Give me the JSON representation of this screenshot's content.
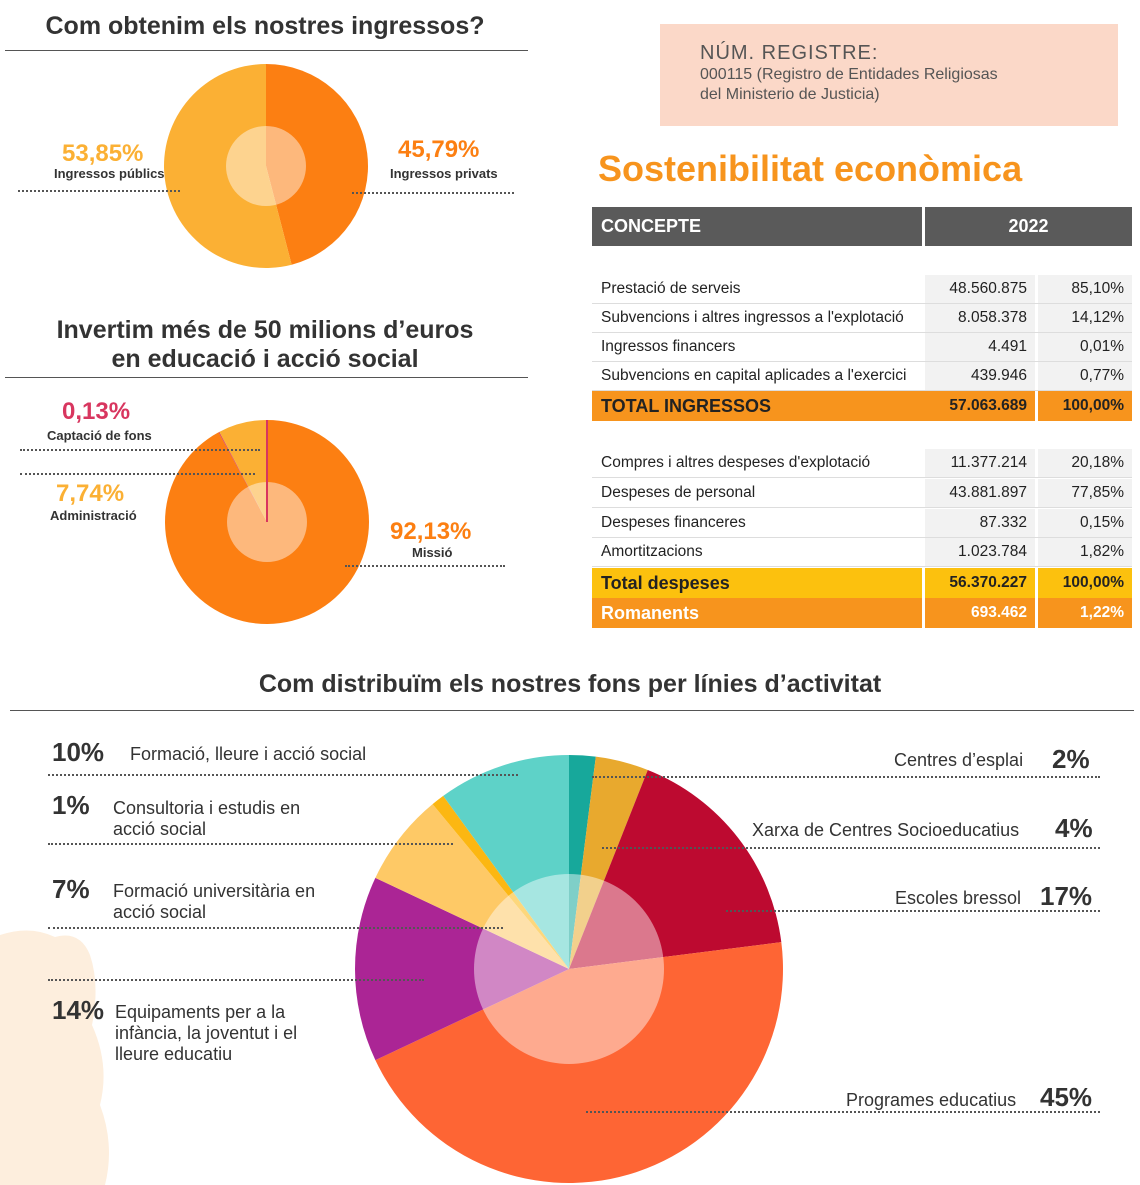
{
  "income_section": {
    "title": "Com obtenim els nostres ingressos?"
  },
  "investment_section": {
    "title_line1": "Invertim més de 50 milions d’euros",
    "title_line2": "en educació i acció social"
  },
  "activity_section": {
    "title": "Com distribuïm els nostres fons per línies d’activitat"
  },
  "registry": {
    "title": "NÚM. REGISTRE:",
    "line1": "000115 (Registro de Entidades Religiosas",
    "line2": "del Ministerio de Justicia)"
  },
  "sustainability": {
    "title": "Sostenibilitat econòmica",
    "header": {
      "concept": "CONCEPTE",
      "year": "2022"
    },
    "income_rows": [
      {
        "label": "Prestació de serveis",
        "amount": "48.560.875",
        "pct": "85,10%"
      },
      {
        "label": "Subvencions i altres ingressos a l'explotació",
        "amount": "8.058.378",
        "pct": "14,12%"
      },
      {
        "label": "Ingressos financers",
        "amount": "4.491",
        "pct": "0,01%"
      },
      {
        "label": "Subvencions en capital aplicades a l'exercici",
        "amount": "439.946",
        "pct": "0,77%"
      }
    ],
    "income_total": {
      "label": "TOTAL INGRESSOS",
      "amount": "57.063.689",
      "pct": "100,00%"
    },
    "expense_rows": [
      {
        "label": "Compres i altres despeses d'explotació",
        "amount": "11.377.214",
        "pct": "20,18%"
      },
      {
        "label": "Despeses de personal",
        "amount": "43.881.897",
        "pct": "77,85%"
      },
      {
        "label": "Despeses financeres",
        "amount": "87.332",
        "pct": "0,15%"
      },
      {
        "label": "Amortitzacions",
        "amount": "1.023.784",
        "pct": "1,82%"
      }
    ],
    "expense_total": {
      "label": "Total despeses",
      "amount": "56.370.227",
      "pct": "100,00%"
    },
    "remainder": {
      "label": "Romanents",
      "amount": "693.462",
      "pct": "1,22%"
    }
  },
  "colors": {
    "public": "#fbb034",
    "private": "#fc7f12",
    "fundraising": "#d8365f",
    "accent_orange": "#f7941d"
  },
  "chart_data": [
    {
      "type": "pie",
      "title": "Com obtenim els nostres ingressos?",
      "slices": [
        {
          "label": "Ingressos públics",
          "value": 53.85,
          "display": "53,85%",
          "color": "#fbb034"
        },
        {
          "label": "Ingressos privats",
          "value": 45.79,
          "display": "45,79%",
          "color": "#fc7f12"
        }
      ]
    },
    {
      "type": "pie",
      "title": "Invertim més de 50 milions d’euros en educació i acció social",
      "slices": [
        {
          "label": "Missió",
          "value": 92.13,
          "display": "92,13%",
          "color": "#fc7f12"
        },
        {
          "label": "Captació de fons",
          "value": 0.13,
          "display": "0,13%",
          "color": "#d8365f"
        },
        {
          "label": "Administració",
          "value": 7.74,
          "display": "7,74%",
          "color": "#fbb034"
        }
      ]
    },
    {
      "type": "pie",
      "title": "Com distribuïm els nostres fons per línies d’activitat",
      "slices": [
        {
          "label": "Centres d’esplai",
          "value": 2,
          "display": "2%",
          "color": "#17a89b"
        },
        {
          "label": "Xarxa de Centres Socioeducatius",
          "value": 4,
          "display": "4%",
          "color": "#e8a92e"
        },
        {
          "label": "Escoles bressol",
          "value": 17,
          "display": "17%",
          "color": "#bd0a30"
        },
        {
          "label": "Programes educatius",
          "value": 45,
          "display": "45%",
          "color": "#fe6534"
        },
        {
          "label": "Equipaments per a la infància, la joventut i el lleure educatiu",
          "value": 14,
          "display": "14%",
          "color": "#ab2595"
        },
        {
          "label": "Formació universitària en acció social",
          "value": 7,
          "display": "7%",
          "color": "#fec966"
        },
        {
          "label": "Consultoria i estudis en acció social",
          "value": 1,
          "display": "1%",
          "color": "#fcb712"
        },
        {
          "label": "Formació, lleure i acció social",
          "value": 10,
          "display": "10%",
          "color": "#5ed2c8"
        }
      ]
    }
  ]
}
